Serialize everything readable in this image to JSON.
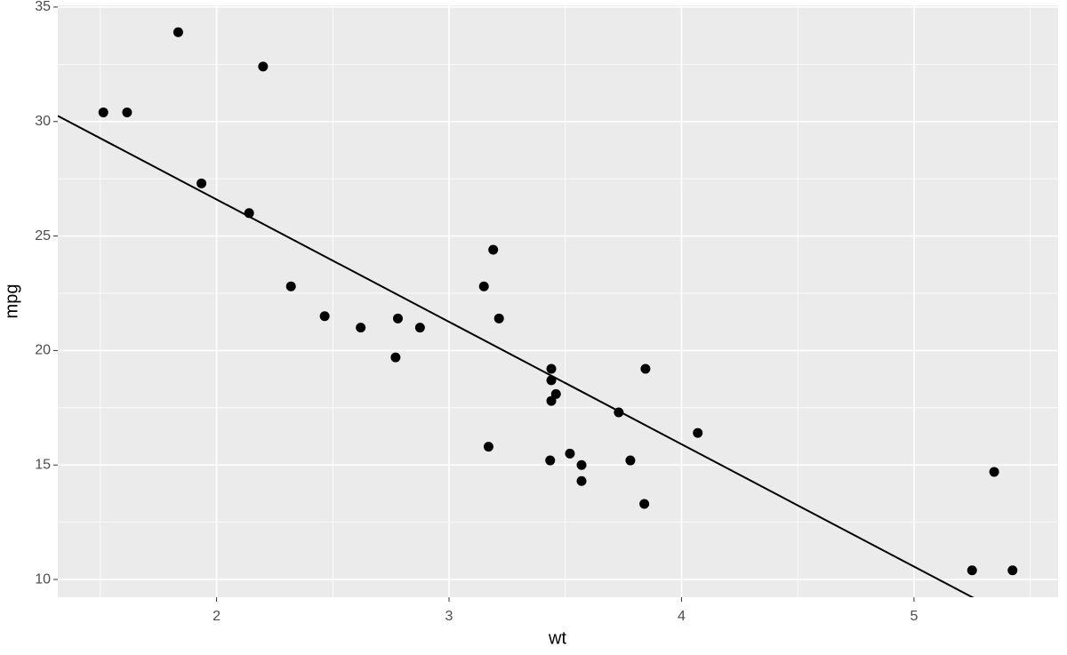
{
  "chart_data": {
    "type": "scatter",
    "x_label": "wt",
    "y_label": "mpg",
    "x": [
      2.62,
      2.875,
      2.32,
      3.215,
      3.44,
      3.46,
      3.57,
      3.19,
      3.15,
      3.44,
      3.44,
      4.07,
      3.73,
      3.78,
      5.25,
      5.424,
      5.345,
      2.2,
      1.615,
      1.835,
      2.465,
      3.52,
      3.435,
      3.84,
      3.845,
      1.935,
      2.14,
      1.513,
      3.17,
      2.77,
      3.57,
      2.78
    ],
    "values": [
      21.0,
      21.0,
      22.8,
      21.4,
      18.7,
      18.1,
      14.3,
      24.4,
      22.8,
      19.2,
      17.8,
      16.4,
      17.3,
      15.2,
      10.4,
      10.4,
      14.7,
      32.4,
      30.4,
      33.9,
      21.5,
      15.5,
      15.2,
      13.3,
      19.2,
      27.3,
      26.0,
      30.4,
      15.8,
      19.7,
      15.0,
      21.4
    ],
    "color": "#000000",
    "line": {
      "intercept": 37.285,
      "slope": -5.344,
      "color": "#000000"
    },
    "xlim": [
      1.317,
      5.62
    ],
    "ylim": [
      9.225,
      35.075
    ],
    "xticks": [
      2,
      3,
      4,
      5
    ],
    "yticks": [
      10,
      15,
      20,
      25,
      30,
      35
    ],
    "x_minor_ticks": [
      1.5,
      2.5,
      3.5,
      4.5,
      5.5
    ],
    "y_minor_ticks": [
      12.5,
      17.5,
      22.5,
      27.5,
      32.5
    ],
    "grid": true
  }
}
